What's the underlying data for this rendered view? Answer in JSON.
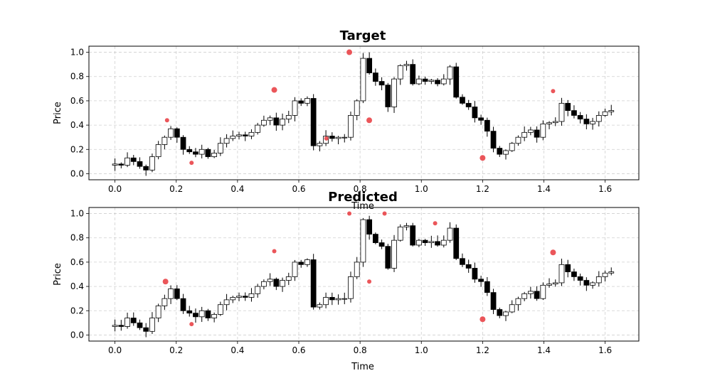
{
  "chart_data": [
    {
      "type": "candlestick",
      "title": "Target",
      "xlabel": "Time",
      "ylabel": "Price",
      "xlim": [
        -0.085,
        1.71
      ],
      "ylim": [
        -0.05,
        1.05
      ],
      "xticks": [
        "0.0",
        "0.2",
        "0.4",
        "0.6",
        "0.8",
        "1.0",
        "1.2",
        "1.4",
        "1.6"
      ],
      "yticks": [
        "0.0",
        "0.2",
        "0.4",
        "0.6",
        "0.8",
        "1.0"
      ],
      "grid": true,
      "colors": {
        "up": "#ffffff",
        "down": "#000000",
        "edge": "#000000",
        "marker": "#e8383d"
      },
      "series_hint": "price path with extrema markers",
      "close": [
        0.08,
        0.07,
        0.13,
        0.1,
        0.06,
        0.03,
        0.14,
        0.24,
        0.3,
        0.37,
        0.3,
        0.2,
        0.18,
        0.16,
        0.2,
        0.14,
        0.17,
        0.25,
        0.29,
        0.31,
        0.32,
        0.31,
        0.34,
        0.4,
        0.44,
        0.46,
        0.4,
        0.45,
        0.48,
        0.6,
        0.58,
        0.62,
        0.23,
        0.25,
        0.31,
        0.29,
        0.3,
        0.3,
        0.48,
        0.6,
        0.95,
        0.83,
        0.76,
        0.73,
        0.55,
        0.78,
        0.89,
        0.9,
        0.74,
        0.78,
        0.76,
        0.77,
        0.74,
        0.78,
        0.88,
        0.63,
        0.58,
        0.55,
        0.46,
        0.44,
        0.35,
        0.21,
        0.16,
        0.19,
        0.25,
        0.3,
        0.34,
        0.36,
        0.3,
        0.41,
        0.42,
        0.43,
        0.58,
        0.52,
        0.48,
        0.45,
        0.41,
        0.43,
        0.48,
        0.51,
        0.52
      ],
      "markers": [
        {
          "x": 0.17,
          "y": 0.44,
          "s": 3
        },
        {
          "x": 0.25,
          "y": 0.09,
          "s": 3
        },
        {
          "x": 0.52,
          "y": 0.69,
          "s": 4
        },
        {
          "x": 0.69,
          "y": 0.29,
          "s": 3
        },
        {
          "x": 0.765,
          "y": 1.0,
          "s": 4
        },
        {
          "x": 0.83,
          "y": 0.44,
          "s": 4
        },
        {
          "x": 1.2,
          "y": 0.13,
          "s": 4
        },
        {
          "x": 1.43,
          "y": 0.68,
          "s": 3
        }
      ]
    },
    {
      "type": "candlestick",
      "title": "Predicted",
      "xlabel": "Time",
      "ylabel": "Price",
      "xlim": [
        -0.085,
        1.71
      ],
      "ylim": [
        -0.05,
        1.05
      ],
      "xticks": [
        "0.0",
        "0.2",
        "0.4",
        "0.6",
        "0.8",
        "1.0",
        "1.2",
        "1.4",
        "1.6"
      ],
      "yticks": [
        "0.0",
        "0.2",
        "0.4",
        "0.6",
        "0.8",
        "1.0"
      ],
      "grid": true,
      "colors": {
        "up": "#ffffff",
        "down": "#000000",
        "edge": "#000000",
        "marker": "#e8383d"
      },
      "close": [
        0.08,
        0.07,
        0.14,
        0.1,
        0.06,
        0.03,
        0.14,
        0.24,
        0.3,
        0.38,
        0.3,
        0.2,
        0.18,
        0.15,
        0.2,
        0.14,
        0.17,
        0.25,
        0.29,
        0.31,
        0.32,
        0.31,
        0.34,
        0.4,
        0.44,
        0.46,
        0.4,
        0.45,
        0.48,
        0.6,
        0.58,
        0.62,
        0.23,
        0.25,
        0.31,
        0.29,
        0.3,
        0.3,
        0.48,
        0.6,
        0.95,
        0.83,
        0.76,
        0.73,
        0.55,
        0.78,
        0.89,
        0.9,
        0.74,
        0.78,
        0.76,
        0.77,
        0.74,
        0.78,
        0.88,
        0.63,
        0.58,
        0.55,
        0.46,
        0.44,
        0.35,
        0.21,
        0.16,
        0.19,
        0.25,
        0.3,
        0.34,
        0.36,
        0.3,
        0.41,
        0.42,
        0.43,
        0.58,
        0.52,
        0.48,
        0.45,
        0.41,
        0.43,
        0.48,
        0.51,
        0.52
      ],
      "markers": [
        {
          "x": 0.165,
          "y": 0.44,
          "s": 4
        },
        {
          "x": 0.25,
          "y": 0.09,
          "s": 3
        },
        {
          "x": 0.52,
          "y": 0.69,
          "s": 3
        },
        {
          "x": 0.765,
          "y": 1.0,
          "s": 3
        },
        {
          "x": 0.83,
          "y": 0.44,
          "s": 3
        },
        {
          "x": 0.88,
          "y": 1.0,
          "s": 3
        },
        {
          "x": 1.045,
          "y": 0.92,
          "s": 3
        },
        {
          "x": 1.2,
          "y": 0.13,
          "s": 4
        },
        {
          "x": 1.43,
          "y": 0.68,
          "s": 4
        }
      ]
    }
  ]
}
